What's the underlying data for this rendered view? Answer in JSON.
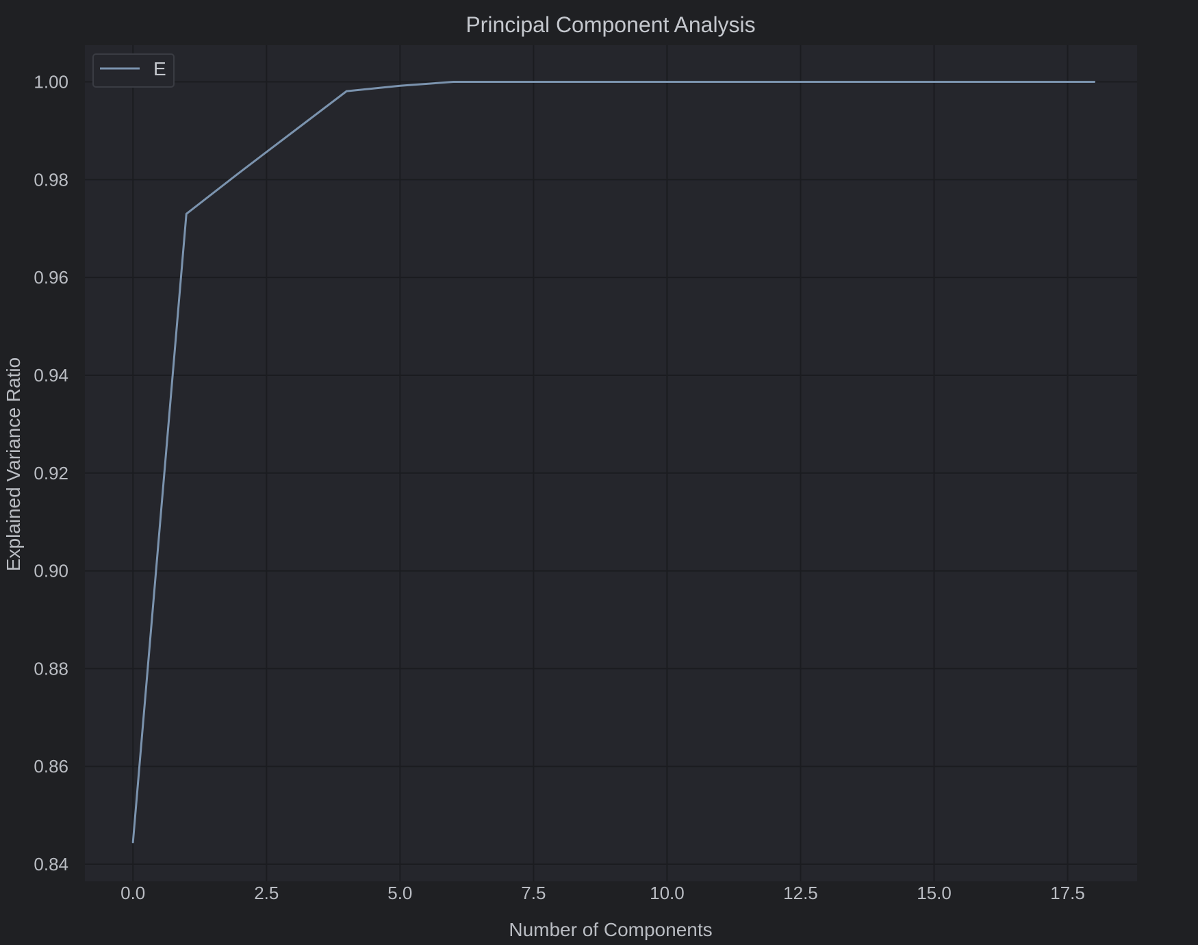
{
  "chart_data": {
    "type": "line",
    "title": "Principal Component Analysis",
    "xlabel": "Number of Components",
    "ylabel": "Explained Variance Ratio",
    "xlim": [
      -0.9,
      18.8
    ],
    "ylim": [
      0.8365,
      1.0075
    ],
    "xticks": [
      0.0,
      2.5,
      5.0,
      7.5,
      10.0,
      12.5,
      15.0,
      17.5
    ],
    "xtick_labels": [
      "0.0",
      "2.5",
      "5.0",
      "7.5",
      "10.0",
      "12.5",
      "15.0",
      "17.5"
    ],
    "yticks": [
      0.84,
      0.86,
      0.88,
      0.9,
      0.92,
      0.94,
      0.96,
      0.98,
      1.0
    ],
    "ytick_labels": [
      "0.84",
      "0.86",
      "0.88",
      "0.90",
      "0.92",
      "0.94",
      "0.96",
      "0.98",
      "1.00"
    ],
    "grid": true,
    "legend_position": "top-left",
    "series": [
      {
        "name": "E",
        "color": "#7b93ae",
        "x": [
          0,
          1,
          2,
          3,
          4,
          5,
          6,
          7,
          8,
          9,
          10,
          11,
          12,
          13,
          14,
          15,
          16,
          17,
          18
        ],
        "y": [
          0.8445,
          0.973,
          0.9815,
          0.9898,
          0.9981,
          0.9992,
          1.0,
          1.0,
          1.0,
          1.0,
          1.0,
          1.0,
          1.0,
          1.0,
          1.0,
          1.0,
          1.0,
          1.0,
          1.0
        ]
      }
    ]
  },
  "colors": {
    "page_background": "#1f2023",
    "plot_background": "#25262c",
    "grid": "#1b1c20",
    "text": "#b9bcc2"
  }
}
